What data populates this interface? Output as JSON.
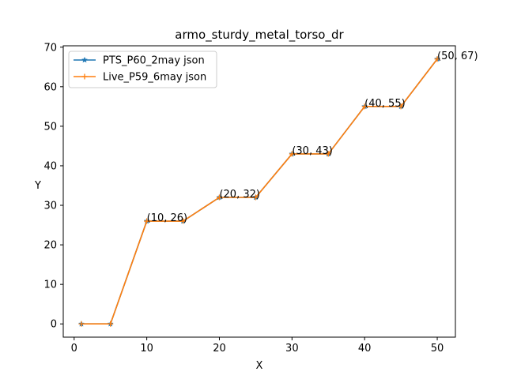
{
  "chart_data": {
    "type": "line",
    "title": "armo_sturdy_metal_torso_dr",
    "xlabel": "X",
    "ylabel": "Y",
    "xlim": [
      -1.5,
      52.5
    ],
    "ylim": [
      -3.35,
      70.35
    ],
    "xticks": [
      0,
      10,
      20,
      30,
      40,
      50
    ],
    "yticks": [
      0,
      10,
      20,
      30,
      40,
      50,
      60,
      70
    ],
    "grid": false,
    "legend_position": "top-left",
    "series": [
      {
        "name": "PTS_P60_2may json",
        "color": "#1f77b4",
        "marker": "star",
        "x": [
          1,
          5,
          10,
          15,
          20,
          25,
          30,
          35,
          40,
          45,
          50
        ],
        "y": [
          0,
          0,
          26,
          26,
          32,
          32,
          43,
          43,
          55,
          55,
          67
        ]
      },
      {
        "name": "Live_P59_6may json",
        "color": "#ff7f0e",
        "marker": "plus",
        "x": [
          1,
          5,
          10,
          15,
          20,
          25,
          30,
          35,
          40,
          45,
          50
        ],
        "y": [
          0,
          0,
          26,
          26,
          32,
          32,
          43,
          43,
          55,
          55,
          67
        ]
      }
    ],
    "annotations": [
      {
        "x": 10,
        "y": 26,
        "text": "(10, 26)"
      },
      {
        "x": 20,
        "y": 32,
        "text": "(20, 32)"
      },
      {
        "x": 30,
        "y": 43,
        "text": "(30, 43)"
      },
      {
        "x": 40,
        "y": 55,
        "text": "(40, 55)"
      },
      {
        "x": 50,
        "y": 67,
        "text": "(50, 67)"
      }
    ]
  }
}
